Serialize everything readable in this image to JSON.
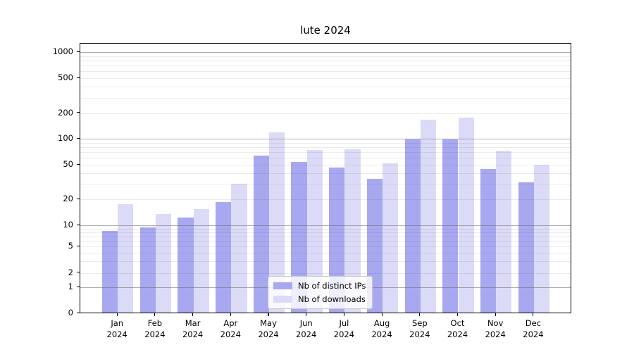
{
  "title": "lute 2024",
  "chart_data": {
    "type": "bar",
    "title": "lute 2024",
    "categories": [
      "Jan 2024",
      "Feb 2024",
      "Mar 2024",
      "Apr 2024",
      "May 2024",
      "Jun 2024",
      "Jul 2024",
      "Aug 2024",
      "Sep 2024",
      "Oct 2024",
      "Nov 2024",
      "Dec 2024"
    ],
    "series": [
      {
        "name": "Nb of distinct IPs",
        "color": "#a8a8f1",
        "values": [
          8,
          9,
          12,
          18,
          62,
          52,
          45,
          33,
          95,
          94,
          43,
          30
        ]
      },
      {
        "name": "Nb of downloads",
        "color": "#dbdbf8",
        "values": [
          17,
          13,
          15,
          29,
          115,
          71,
          73,
          50,
          160,
          170,
          70,
          48
        ]
      }
    ],
    "yscale": "symlog",
    "yticks": [
      0,
      1,
      2,
      5,
      10,
      20,
      50,
      100,
      200,
      500,
      1000
    ],
    "ylim": [
      0,
      1400
    ],
    "grid": true,
    "legend_position": "lower center"
  }
}
